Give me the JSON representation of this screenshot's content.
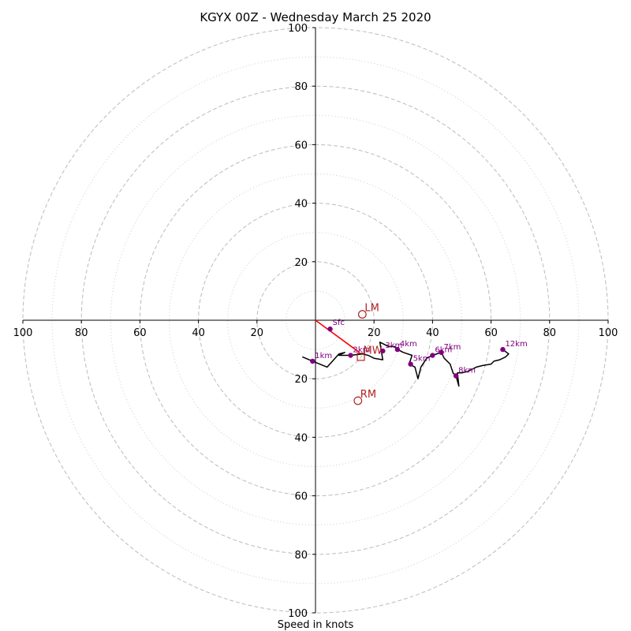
{
  "chart_data": {
    "type": "scatter",
    "title": "KGYX 00Z - Wednesday March 25 2020",
    "xlabel": "Speed in knots",
    "ylabel": "",
    "xlim": [
      -100,
      100
    ],
    "ylim": [
      -100,
      100
    ],
    "grid": true,
    "x_tick_labels": [
      "100",
      "80",
      "60",
      "40",
      "20",
      "20",
      "40",
      "60",
      "80",
      "100"
    ],
    "y_tick_labels": [
      "100",
      "80",
      "60",
      "40",
      "20",
      "20",
      "40",
      "60",
      "80",
      "100"
    ],
    "rings_major": [
      20,
      40,
      60,
      80,
      100
    ],
    "rings_minor": [
      10,
      30,
      50,
      70,
      90
    ],
    "hodograph": {
      "color": "#000000",
      "x": [
        -4.5,
        -1,
        4,
        8,
        10,
        8,
        12,
        16,
        18,
        20,
        23,
        22,
        25,
        27,
        28,
        30,
        33,
        32,
        34,
        35,
        36,
        38,
        40,
        43,
        44,
        46,
        47,
        48,
        49,
        48.5,
        50,
        52,
        55,
        57,
        60,
        61,
        63,
        65,
        66,
        64
      ],
      "y": [
        -12.5,
        -14,
        -16,
        -11.5,
        -11,
        -12,
        -12,
        -11.5,
        -12,
        -13,
        -13.5,
        -7.5,
        -9,
        -9,
        -10,
        -11,
        -12,
        -15,
        -16,
        -20,
        -16,
        -13,
        -12,
        -11,
        -13,
        -15,
        -18,
        -19,
        -22.5,
        -18,
        -18,
        -17.5,
        -16,
        -15.5,
        -15,
        -14,
        -13.5,
        -12.5,
        -11.5,
        -10
      ]
    },
    "height_markers": [
      {
        "label": "",
        "x": 5,
        "y": -3
      },
      {
        "label": "1km",
        "x": -1,
        "y": -14
      },
      {
        "label": "2km",
        "x": 12,
        "y": -12
      },
      {
        "label": "3km",
        "x": 23,
        "y": -10.5
      },
      {
        "label": "4km",
        "x": 28,
        "y": -10
      },
      {
        "label": "5km",
        "x": 32.5,
        "y": -15
      },
      {
        "label": "6km",
        "x": 40,
        "y": -12
      },
      {
        "label": "7km",
        "x": 43,
        "y": -11
      },
      {
        "label": "8km",
        "x": 48,
        "y": -19
      },
      {
        "label": "12km",
        "x": 64,
        "y": -10
      }
    ],
    "sfc_label": "Sfc",
    "shear_line": {
      "color": "#ff0000",
      "x": [
        0,
        15
      ],
      "y": [
        0,
        -11
      ]
    },
    "storm_motion": [
      {
        "label": "LM",
        "x": 16,
        "y": 2,
        "marker": "circle"
      },
      {
        "label": "MW",
        "x": 15.5,
        "y": -12.5,
        "marker": "square"
      },
      {
        "label": "RM",
        "x": 14.5,
        "y": -27.5,
        "marker": "circle"
      }
    ],
    "colors": {
      "markers": "#800080",
      "storm_motion": "#b22222",
      "grid": "#bbbbbb"
    }
  }
}
